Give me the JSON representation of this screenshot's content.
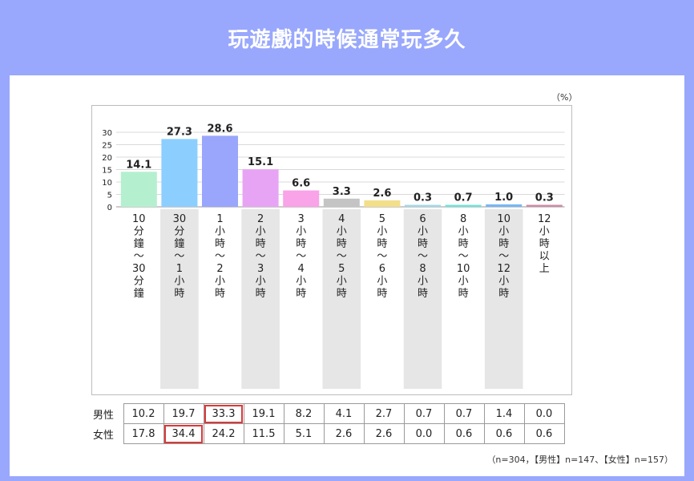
{
  "page_title": "玩遊戲的時候通常玩多久",
  "unit_label": "（%）",
  "footnote": "（n=304，【男性】n=147、【女性】n=157）",
  "chart_data": {
    "type": "bar",
    "title": "",
    "xlabel": "",
    "ylabel": "",
    "ylim": [
      0,
      30
    ],
    "yticks": [
      0,
      5,
      10,
      15,
      20,
      25,
      30
    ],
    "grid": true,
    "categories": [
      "10分鐘～30分鐘",
      "30分鐘～1小時",
      "1小時～2小時",
      "2小時～3小時",
      "3小時～4小時",
      "4小時～5小時",
      "5小時～6小時",
      "6小時～8小時",
      "8小時～10小時",
      "10小時～12小時",
      "12小時以上"
    ],
    "category_lines": [
      [
        "10",
        "分",
        "鐘",
        "～",
        "30",
        "分",
        "鐘"
      ],
      [
        "30",
        "分",
        "鐘",
        "～",
        "1",
        "小",
        "時"
      ],
      [
        "1",
        "小",
        "時",
        "～",
        "2",
        "小",
        "時"
      ],
      [
        "2",
        "小",
        "時",
        "～",
        "3",
        "小",
        "時"
      ],
      [
        "3",
        "小",
        "時",
        "～",
        "4",
        "小",
        "時"
      ],
      [
        "4",
        "小",
        "時",
        "～",
        "5",
        "小",
        "時"
      ],
      [
        "5",
        "小",
        "時",
        "～",
        "6",
        "小",
        "時"
      ],
      [
        "6",
        "小",
        "時",
        "～",
        "8",
        "小",
        "時"
      ],
      [
        "8",
        "小",
        "時",
        "～",
        "10",
        "小",
        "時"
      ],
      [
        "10",
        "小",
        "時",
        "～",
        "12",
        "小",
        "時"
      ],
      [
        "12",
        "小",
        "時",
        "以",
        "上"
      ]
    ],
    "values": [
      14.1,
      27.3,
      28.6,
      15.1,
      6.6,
      3.3,
      2.6,
      0.3,
      0.7,
      1.0,
      0.3
    ],
    "value_labels": [
      "14.1",
      "27.3",
      "28.6",
      "15.1",
      "6.6",
      "3.3",
      "2.6",
      "0.3",
      "0.7",
      "1.0",
      "0.3"
    ],
    "colors": [
      "#b4f0cf",
      "#8ccfff",
      "#9aa6fb",
      "#e8a4f4",
      "#f9a3e8",
      "#c4c4c4",
      "#f3de8a",
      "#a4d8e6",
      "#6fe3d8",
      "#78b6f4",
      "#cc8aa6"
    ],
    "shaded_columns": [
      1,
      3,
      5,
      7,
      9
    ],
    "breakdown": {
      "rows": [
        {
          "label": "男性",
          "values": [
            "10.2",
            "19.7",
            "33.3",
            "19.1",
            "8.2",
            "4.1",
            "2.7",
            "0.7",
            "0.7",
            "1.4",
            "0.0"
          ],
          "highlight_index": 2
        },
        {
          "label": "女性",
          "values": [
            "17.8",
            "34.4",
            "24.2",
            "11.5",
            "5.1",
            "2.6",
            "2.6",
            "0.0",
            "0.6",
            "0.6",
            "0.6"
          ],
          "highlight_index": 1
        }
      ],
      "highlight_color": "#d93a3a"
    }
  }
}
